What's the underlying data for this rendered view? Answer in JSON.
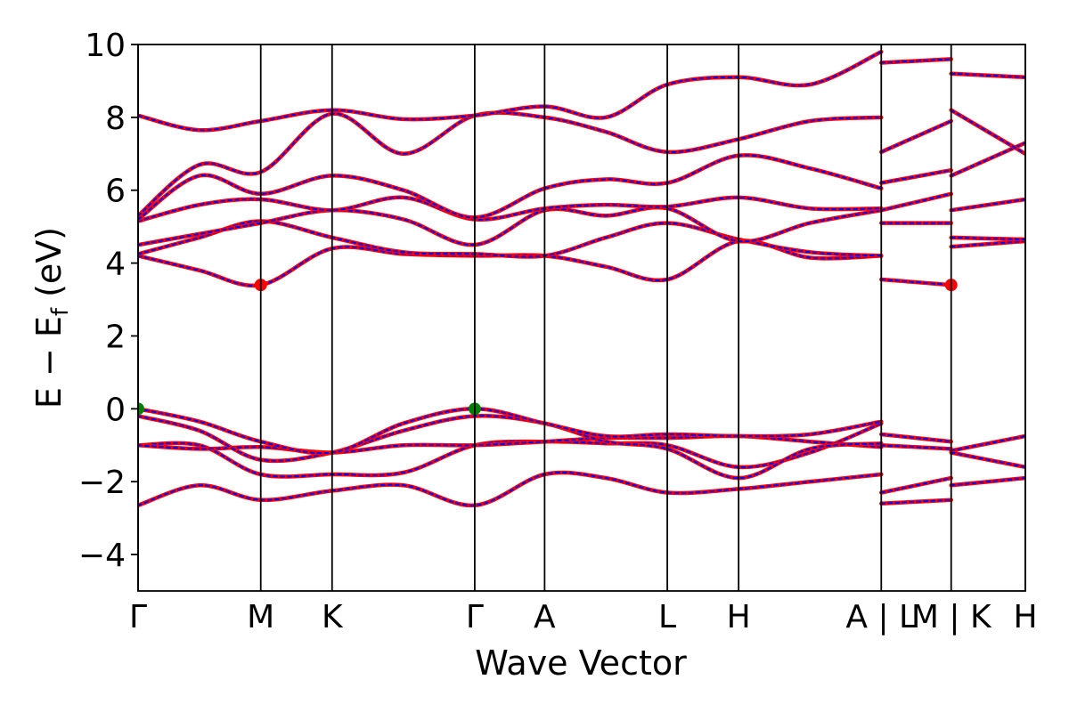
{
  "chart_data": {
    "type": "line",
    "title": "",
    "xlabel": "Wave Vector",
    "ylabel": "E − E_f (eV)",
    "ylabel_parts": {
      "main": "E − E",
      "sub": "f",
      "unit": " (eV)"
    },
    "ylim": [
      -5,
      10
    ],
    "yticks": [
      -4,
      -2,
      0,
      2,
      4,
      6,
      8,
      10
    ],
    "ytick_labels": [
      "−4",
      "−2",
      "0",
      "2",
      "4",
      "6",
      "8",
      "10"
    ],
    "xlim": [
      0,
      6.22
    ],
    "kpoints": [
      {
        "label": "Γ",
        "x": 0.0
      },
      {
        "label": "M",
        "x": 0.86
      },
      {
        "label": "K",
        "x": 1.36
      },
      {
        "label": "Γ",
        "x": 2.36
      },
      {
        "label": "A",
        "x": 2.85
      },
      {
        "label": "L",
        "x": 3.71
      },
      {
        "label": "H",
        "x": 4.21
      },
      {
        "label": "A | L",
        "x": 5.21
      },
      {
        "label": "M | K",
        "x": 5.7
      },
      {
        "label": "H",
        "x": 6.22
      }
    ],
    "series_styles": [
      {
        "color": "#ff0000",
        "line_width": 4,
        "dashed": false
      },
      {
        "color": "#0000ff",
        "line_width": 2,
        "dashed": true
      }
    ],
    "bands": [
      {
        "x": [
          0,
          0.43,
          0.86,
          1.36,
          1.86,
          2.36,
          2.85,
          3.28,
          3.71,
          4.21,
          4.71,
          5.21
        ],
        "y": [
          -2.65,
          -2.1,
          -2.5,
          -2.25,
          -2.1,
          -2.65,
          -1.8,
          -1.9,
          -2.3,
          -2.2,
          -2.0,
          -1.8
        ]
      },
      {
        "x": [
          0,
          0.43,
          0.86,
          1.36,
          1.86,
          2.36,
          2.85,
          3.28,
          3.71,
          4.21,
          4.71,
          5.21
        ],
        "y": [
          -1.0,
          -1.0,
          -1.8,
          -1.8,
          -1.75,
          -1.0,
          -0.9,
          -0.95,
          -1.0,
          -1.6,
          -1.2,
          -0.4
        ]
      },
      {
        "x": [
          0,
          0.43,
          0.86,
          1.36,
          1.86,
          2.36,
          2.85,
          3.28,
          3.71,
          4.21,
          4.71,
          5.21
        ],
        "y": [
          -1.0,
          -1.1,
          -1.05,
          -1.2,
          -1.0,
          -1.0,
          -0.9,
          -0.8,
          -0.8,
          -0.75,
          -0.9,
          -1.05
        ]
      },
      {
        "x": [
          0,
          0.43,
          0.86,
          1.36,
          1.86,
          2.36,
          2.85,
          3.28,
          3.71,
          4.21,
          4.71,
          5.21
        ],
        "y": [
          -0.2,
          -0.6,
          -1.4,
          -1.2,
          -0.6,
          -0.2,
          -0.4,
          -0.9,
          -1.1,
          -1.9,
          -1.1,
          -0.95
        ]
      },
      {
        "x": [
          0,
          0.43,
          0.86,
          1.36,
          1.86,
          2.36,
          2.85,
          3.28,
          3.71,
          4.21,
          4.71,
          5.21
        ],
        "y": [
          0.0,
          -0.35,
          -0.9,
          -1.2,
          -0.4,
          0.0,
          -0.4,
          -0.75,
          -0.7,
          -0.75,
          -0.7,
          -0.35
        ]
      },
      {
        "x": [
          0,
          0.43,
          0.86,
          1.36,
          1.86,
          2.36,
          2.85,
          3.28,
          3.71,
          4.21,
          4.71,
          5.21
        ],
        "y": [
          4.2,
          3.8,
          3.4,
          4.4,
          4.25,
          4.2,
          4.2,
          3.9,
          3.55,
          4.6,
          4.15,
          4.2
        ]
      },
      {
        "x": [
          0,
          0.43,
          0.86,
          1.36,
          1.86,
          2.36,
          2.85,
          3.28,
          3.71,
          4.21,
          4.71,
          5.21
        ],
        "y": [
          4.25,
          4.7,
          5.15,
          4.7,
          4.3,
          4.25,
          4.2,
          4.7,
          5.1,
          4.65,
          4.3,
          4.2
        ]
      },
      {
        "x": [
          0,
          0.43,
          0.86,
          1.36,
          1.86,
          2.36,
          2.85,
          3.28,
          3.71,
          4.21,
          4.71,
          5.21
        ],
        "y": [
          4.5,
          4.8,
          5.1,
          5.45,
          5.2,
          4.5,
          5.45,
          5.3,
          5.5,
          4.6,
          5.1,
          5.45
        ]
      },
      {
        "x": [
          0,
          0.43,
          0.86,
          1.36,
          1.86,
          2.36,
          2.85,
          3.28,
          3.71,
          4.21,
          4.71,
          5.21
        ],
        "y": [
          5.15,
          5.6,
          5.75,
          5.45,
          5.8,
          5.2,
          5.5,
          5.6,
          5.55,
          5.8,
          5.5,
          5.5
        ]
      },
      {
        "x": [
          0,
          0.43,
          0.86,
          1.36,
          1.86,
          2.36,
          2.85,
          3.28,
          3.71,
          4.21,
          4.71,
          5.21
        ],
        "y": [
          5.2,
          6.4,
          5.9,
          6.4,
          6.0,
          5.25,
          6.05,
          6.3,
          6.2,
          6.95,
          6.6,
          6.05
        ]
      },
      {
        "x": [
          0,
          0.43,
          0.86,
          1.36,
          1.86,
          2.36,
          2.85,
          3.28,
          3.71,
          4.21,
          4.71,
          5.21
        ],
        "y": [
          5.3,
          6.7,
          6.5,
          8.1,
          7.0,
          8.05,
          8.0,
          7.6,
          7.05,
          7.4,
          7.9,
          8.0
        ]
      },
      {
        "x": [
          0,
          0.43,
          0.86,
          1.36,
          1.86,
          2.36,
          2.85,
          3.28,
          3.71,
          4.21,
          4.71,
          5.21
        ],
        "y": [
          8.05,
          7.65,
          7.9,
          8.2,
          7.95,
          8.05,
          8.3,
          8.0,
          8.9,
          9.1,
          8.9,
          9.8
        ]
      }
    ],
    "bands_tail": [
      {
        "x": [
          5.21,
          5.7
        ],
        "y": [
          -2.6,
          -2.5
        ]
      },
      {
        "x": [
          5.21,
          5.7
        ],
        "y": [
          -2.3,
          -1.9
        ]
      },
      {
        "x": [
          5.21,
          5.7
        ],
        "y": [
          -1.0,
          -1.1
        ]
      },
      {
        "x": [
          5.21,
          5.7
        ],
        "y": [
          -0.7,
          -0.9
        ]
      },
      {
        "x": [
          5.21,
          5.7
        ],
        "y": [
          3.55,
          3.4
        ]
      },
      {
        "x": [
          5.21,
          5.7
        ],
        "y": [
          5.1,
          5.1
        ]
      },
      {
        "x": [
          5.21,
          5.7
        ],
        "y": [
          5.45,
          5.9
        ]
      },
      {
        "x": [
          5.21,
          5.7
        ],
        "y": [
          6.2,
          6.55
        ]
      },
      {
        "x": [
          5.21,
          5.7
        ],
        "y": [
          7.05,
          7.9
        ]
      },
      {
        "x": [
          5.21,
          5.7
        ],
        "y": [
          9.5,
          9.6
        ]
      },
      {
        "x": [
          5.7,
          6.22
        ],
        "y": [
          -1.15,
          -0.75
        ]
      },
      {
        "x": [
          5.7,
          6.22
        ],
        "y": [
          -1.2,
          -1.6
        ]
      },
      {
        "x": [
          5.7,
          6.22
        ],
        "y": [
          -2.1,
          -1.9
        ]
      },
      {
        "x": [
          5.7,
          6.22
        ],
        "y": [
          4.45,
          4.6
        ]
      },
      {
        "x": [
          5.7,
          6.22
        ],
        "y": [
          4.7,
          4.65
        ]
      },
      {
        "x": [
          5.7,
          6.22
        ],
        "y": [
          5.45,
          5.75
        ]
      },
      {
        "x": [
          5.7,
          6.22
        ],
        "y": [
          6.4,
          7.3
        ]
      },
      {
        "x": [
          5.7,
          6.22
        ],
        "y": [
          8.2,
          7.0
        ]
      },
      {
        "x": [
          5.7,
          6.22
        ],
        "y": [
          9.2,
          9.1
        ]
      }
    ],
    "markers": [
      {
        "x": 0.86,
        "y": 3.4,
        "color": "#ff0000",
        "role": "CBM"
      },
      {
        "x": 5.7,
        "y": 3.4,
        "color": "#ff0000",
        "role": "CBM"
      },
      {
        "x": 0.0,
        "y": 0.0,
        "color": "#008000",
        "role": "VBM"
      },
      {
        "x": 2.36,
        "y": 0.0,
        "color": "#008000",
        "role": "VBM"
      }
    ],
    "grid": false,
    "legend": "none"
  }
}
